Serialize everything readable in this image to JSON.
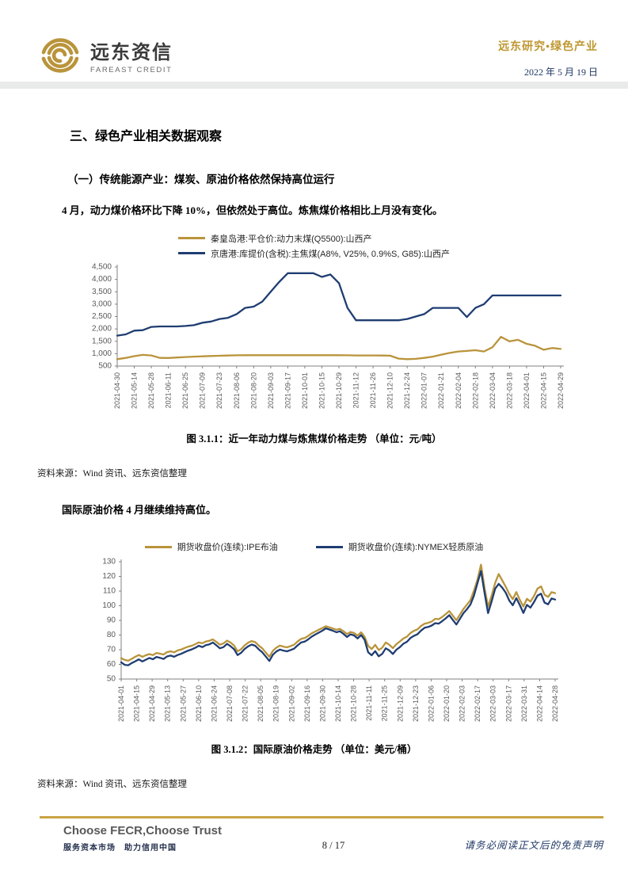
{
  "header": {
    "logo_cn": "远东资信",
    "logo_en": "FAREAST CREDIT",
    "series_label": "远东研究•绿色产业",
    "date": "2022 年 5 月 19 日"
  },
  "section": {
    "h1": "三、绿色产业相关数据观察",
    "h2": "（一）传统能源产业：煤炭、原油价格依然保持高位运行",
    "p1": "4 月，动力煤价格环比下降 10%，但依然处于高位。炼焦煤价格相比上月没有变化。",
    "p2": "国际原油价格 4 月继续维持高位。"
  },
  "figure1": {
    "source": "资料来源：Wind 资讯、远东资信整理"
  },
  "figure2": {
    "source": "资料来源：Wind 资讯、远东资信整理"
  },
  "footer": {
    "slogan_en": "Choose FECR,Choose Trust",
    "slogan_cn": "服务资本市场　助力信用中国",
    "page": "8 / 17",
    "disclaimer": "请务必阅读正文后的免责声明"
  },
  "colors": {
    "gold": "#B9943B",
    "navy": "#1F3D72",
    "axis": "#808080",
    "tick_text": "#595959"
  },
  "chart_data": [
    {
      "type": "line",
      "title": "图 3.1.1：近一年动力煤与炼焦煤价格走势 （单位：元/吨）",
      "xlabel": "",
      "ylabel": "元/吨",
      "ylim": [
        500,
        4500
      ],
      "grid": false,
      "legend_position": "top-stacked",
      "yticks": [
        "500",
        "1,000",
        "1,500",
        "2,000",
        "2,500",
        "3,000",
        "3,500",
        "4,000",
        "4,500"
      ],
      "x_labels": [
        "2021-04-30",
        "2021-05-14",
        "2021-05-28",
        "2021-06-11",
        "2021-06-25",
        "2021-07-09",
        "2021-07-23",
        "2021-08-06",
        "2021-08-20",
        "2021-09-03",
        "2021-09-17",
        "2021-10-01",
        "2021-10-15",
        "2021-10-29",
        "2021-11-12",
        "2021-11-26",
        "2021-12-10",
        "2021-12-24",
        "2022-01-07",
        "2022-01-21",
        "2022-02-04",
        "2022-02-18",
        "2022-03-04",
        "2022-03-18",
        "2022-04-01",
        "2022-04-15",
        "2022-04-29"
      ],
      "series": [
        {
          "name": "秦皇岛港:平仓价:动力末煤(Q5500):山西产",
          "color": "#B9943B",
          "values": [
            780,
            830,
            900,
            950,
            930,
            830,
            825,
            845,
            865,
            880,
            895,
            905,
            915,
            925,
            935,
            940,
            940,
            940,
            940,
            940,
            940,
            940,
            940,
            940,
            940,
            940,
            940,
            935,
            930,
            930,
            930,
            925,
            920,
            800,
            780,
            790,
            830,
            880,
            960,
            1030,
            1090,
            1110,
            1140,
            1090,
            1260,
            1680,
            1500,
            1560,
            1400,
            1320,
            1160,
            1230,
            1190
          ]
        },
        {
          "name": "京唐港:库提价(含税):主焦煤(A8%, V25%, 0.9%S, G85):山西产",
          "color": "#1F3D72",
          "values": [
            1730,
            1780,
            1930,
            1950,
            2080,
            2100,
            2100,
            2100,
            2120,
            2150,
            2250,
            2300,
            2400,
            2450,
            2600,
            2850,
            2900,
            3100,
            3500,
            3900,
            4250,
            4250,
            4250,
            4250,
            4100,
            4200,
            3850,
            2850,
            2350,
            2350,
            2350,
            2350,
            2350,
            2350,
            2400,
            2500,
            2600,
            2850,
            2850,
            2850,
            2850,
            2480,
            2850,
            3000,
            3350,
            3350,
            3350,
            3350,
            3350,
            3350,
            3350,
            3350,
            3350
          ]
        }
      ]
    },
    {
      "type": "line",
      "title": "图 3.1.2：国际原油价格走势 （单位：美元/桶）",
      "xlabel": "",
      "ylabel": "美元/桶",
      "ylim": [
        50,
        130
      ],
      "grid": false,
      "legend_position": "top-row",
      "yticks": [
        "50",
        "60",
        "70",
        "80",
        "90",
        "100",
        "110",
        "120",
        "130"
      ],
      "x_labels": [
        "2021-04-01",
        "2021-04-15",
        "2021-04-29",
        "2021-05-13",
        "2021-05-27",
        "2021-06-10",
        "2021-06-24",
        "2021-07-08",
        "2021-07-22",
        "2021-08-05",
        "2021-08-19",
        "2021-09-02",
        "2021-09-16",
        "2021-09-30",
        "2021-10-14",
        "2021-10-28",
        "2021-11-11",
        "2021-11-25",
        "2021-12-09",
        "2021-12-23",
        "2022-01-06",
        "2022-01-20",
        "2022-02-03",
        "2022-02-17",
        "2022-03-03",
        "2022-03-17",
        "2022-03-31",
        "2022-04-14",
        "2022-04-28"
      ],
      "series": [
        {
          "name": "期货收盘价(连续):IPE布油",
          "color": "#B9943B",
          "values": [
            64.2,
            63.0,
            62.5,
            63.8,
            65.2,
            66.4,
            65.2,
            66.2,
            67.0,
            66.3,
            67.8,
            67.3,
            66.7,
            68.3,
            68.9,
            68.2,
            69.5,
            70.1,
            71.2,
            72.1,
            72.7,
            73.8,
            75.0,
            74.4,
            75.6,
            76.1,
            77.0,
            75.3,
            73.4,
            74.3,
            76.2,
            74.9,
            72.8,
            68.9,
            70.4,
            73.0,
            74.8,
            75.9,
            75.2,
            72.8,
            70.9,
            68.0,
            65.2,
            69.3,
            71.4,
            72.8,
            72.1,
            71.6,
            72.5,
            73.4,
            75.6,
            77.4,
            78.0,
            79.4,
            81.2,
            82.4,
            83.6,
            84.8,
            86.0,
            85.3,
            84.5,
            83.6,
            84.2,
            82.6,
            80.7,
            82.1,
            81.4,
            79.6,
            81.9,
            78.8,
            72.6,
            70.5,
            73.3,
            69.8,
            71.4,
            74.9,
            73.4,
            71.1,
            73.8,
            75.7,
            77.7,
            78.9,
            81.4,
            82.9,
            83.9,
            86.2,
            87.8,
            88.3,
            89.2,
            91.1,
            90.8,
            92.4,
            94.3,
            96.4,
            93.2,
            90.1,
            93.9,
            97.8,
            100.7,
            103.9,
            110.4,
            118.0,
            128.0,
            112.0,
            99.3,
            106.9,
            115.6,
            121.6,
            117.3,
            113.0,
            108.0,
            104.5,
            109.3,
            104.0,
            99.5,
            104.7,
            102.8,
            106.6,
            111.7,
            113.2,
            107.5,
            106.0,
            109.3,
            108.6
          ]
        },
        {
          "name": "期货收盘价(连续):NYMEX轻质原油",
          "color": "#1F3D72",
          "values": [
            61.4,
            59.7,
            59.4,
            60.9,
            62.1,
            63.4,
            62.0,
            63.2,
            64.4,
            63.5,
            65.1,
            64.5,
            63.7,
            65.4,
            66.0,
            65.2,
            66.4,
            67.2,
            68.3,
            69.4,
            70.2,
            71.3,
            72.7,
            71.8,
            73.1,
            73.7,
            74.9,
            73.0,
            71.0,
            71.8,
            74.0,
            72.4,
            70.3,
            66.3,
            67.9,
            70.5,
            72.3,
            73.5,
            72.7,
            70.2,
            68.2,
            65.3,
            62.3,
            66.6,
            68.8,
            70.1,
            69.4,
            68.9,
            69.8,
            70.7,
            73.0,
            74.9,
            75.5,
            77.0,
            78.9,
            80.3,
            81.6,
            83.0,
            84.6,
            83.8,
            83.0,
            81.9,
            82.6,
            80.8,
            78.7,
            80.5,
            79.8,
            77.7,
            80.0,
            76.8,
            68.2,
            66.2,
            69.0,
            65.5,
            67.2,
            71.0,
            69.5,
            67.1,
            70.0,
            71.8,
            74.1,
            75.4,
            78.0,
            79.5,
            80.6,
            83.1,
            85.0,
            85.5,
            86.5,
            88.1,
            87.8,
            89.5,
            91.4,
            93.6,
            90.3,
            87.2,
            91.0,
            94.9,
            97.6,
            100.9,
            106.9,
            115.6,
            123.7,
            108.7,
            95.0,
            103.0,
            111.7,
            114.9,
            112.3,
            108.9,
            103.5,
            100.3,
            105.2,
            100.5,
            95.1,
            100.6,
            98.7,
            102.5,
            106.9,
            108.2,
            102.1,
            101.0,
            105.0,
            104.2
          ]
        }
      ]
    }
  ]
}
